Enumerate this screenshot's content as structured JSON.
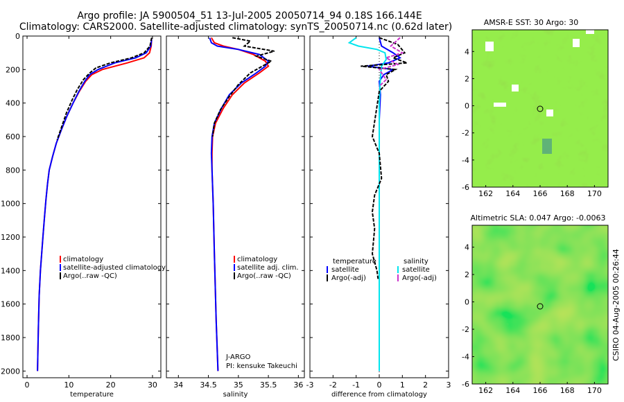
{
  "figure": {
    "title_line1": "Argo profile: JA 5900504_51 13-Jul-2005 20050714_94 0.18S 166.144E",
    "title_line2": "Climatology: CARS2000. Satellite-adjusted climatology: synTS_20050714.nc (0.62d later)",
    "side_label": "CSIRO 04-Aug-2005 00:26:44",
    "colors": {
      "climatology": "#ff0000",
      "satellite": "#0000ff",
      "argo": "#000000",
      "cyan": "#00e5ee",
      "magenta": "#cc33cc"
    }
  },
  "chart_data": [
    {
      "id": "temperature",
      "type": "line",
      "xlabel": "temperature",
      "ylabel": "",
      "xlim": [
        -1,
        32
      ],
      "ylim": [
        2040,
        0
      ],
      "xticks": [
        0,
        10,
        20,
        30
      ],
      "yticks": [
        0,
        200,
        400,
        600,
        800,
        1000,
        1200,
        1400,
        1600,
        1800,
        2000
      ],
      "legend": [
        "climatology",
        "satellite-adjusted climatology",
        "Argo(..raw -QC)"
      ],
      "series": [
        {
          "name": "climatology",
          "color": "#ff0000",
          "x": [
            29.8,
            29.7,
            29.3,
            28,
            24,
            18,
            15.5,
            14,
            12.5,
            11,
            9.5,
            8.2,
            7,
            6.1,
            5.3,
            4.9,
            4.5,
            4.1,
            3.8,
            3.5,
            3.2,
            2.9,
            2.7,
            2.5
          ],
          "y": [
            20,
            60,
            100,
            130,
            160,
            200,
            230,
            270,
            330,
            400,
            480,
            560,
            640,
            720,
            800,
            880,
            980,
            1100,
            1200,
            1300,
            1400,
            1550,
            1750,
            2000
          ]
        },
        {
          "name": "satellite-adjusted climatology",
          "color": "#0000ff",
          "x": [
            29.8,
            29.6,
            28.5,
            26,
            21,
            17,
            15,
            13.8,
            12.4,
            11,
            9.5,
            8.2,
            7,
            6.1,
            5.3,
            4.9,
            4.5,
            4.1,
            3.8,
            3.5,
            3.2,
            2.9,
            2.7,
            2.5
          ],
          "y": [
            20,
            60,
            100,
            130,
            160,
            200,
            230,
            270,
            330,
            400,
            480,
            560,
            640,
            720,
            800,
            880,
            980,
            1100,
            1200,
            1300,
            1400,
            1550,
            1750,
            2000
          ]
        },
        {
          "name": "Argo(..raw -QC)",
          "color": "#000000",
          "x": [
            29.8,
            29.4,
            28,
            25,
            20,
            16.5,
            15,
            13.5,
            12,
            10.8,
            9.4,
            8.3,
            7.2
          ],
          "y": [
            10,
            60,
            100,
            130,
            160,
            190,
            220,
            260,
            320,
            380,
            460,
            540,
            620
          ]
        }
      ]
    },
    {
      "id": "salinity",
      "type": "line",
      "xlabel": "salinity",
      "xlim": [
        33.8,
        36.1
      ],
      "ylim": [
        2040,
        0
      ],
      "xticks": [
        34,
        34.5,
        35,
        35.5,
        36
      ],
      "legend": [
        "climatology",
        "satellite adj. clim.",
        "Argo(..raw -QC)"
      ],
      "annotations": [
        "J-ARGO",
        "PI: kensuke Takeuchi"
      ],
      "series": [
        {
          "name": "climatology",
          "color": "#ff0000",
          "x": [
            34.55,
            34.6,
            34.75,
            35,
            35.25,
            35.45,
            35.5,
            35.35,
            35.1,
            34.9,
            34.75,
            34.62,
            34.57,
            34.56,
            34.56,
            34.58,
            34.6,
            34.63,
            34.66
          ],
          "y": [
            10,
            40,
            60,
            80,
            110,
            150,
            180,
            220,
            280,
            350,
            430,
            520,
            600,
            700,
            800,
            1000,
            1300,
            1700,
            2000
          ]
        },
        {
          "name": "satellite adj. clim.",
          "color": "#0000ff",
          "x": [
            34.52,
            34.55,
            34.65,
            35,
            35.35,
            35.5,
            35.45,
            35.3,
            35.05,
            34.85,
            34.72,
            34.6,
            34.56,
            34.55,
            34.56,
            34.58,
            34.6,
            34.63,
            34.66
          ],
          "y": [
            10,
            40,
            60,
            80,
            110,
            150,
            180,
            220,
            280,
            350,
            430,
            520,
            600,
            700,
            800,
            1000,
            1300,
            1700,
            2000
          ]
        },
        {
          "name": "Argo(..raw -QC)",
          "color": "#000000",
          "x": [
            34.9,
            35.2,
            35.1,
            35.6,
            35.3,
            35.55,
            35.4,
            35.2,
            35,
            34.85,
            34.7,
            34.6,
            34.57
          ],
          "y": [
            10,
            30,
            60,
            90,
            120,
            150,
            180,
            220,
            290,
            360,
            440,
            520,
            600
          ]
        }
      ]
    },
    {
      "id": "difference",
      "type": "line",
      "xlabel": "difference from climatology",
      "xlim": [
        -3,
        3
      ],
      "ylim": [
        2040,
        0
      ],
      "xticks": [
        -3,
        -2,
        -1,
        0,
        1,
        2,
        3
      ],
      "legend": [
        "temperature",
        "satellite",
        "Argo(-adj)",
        "salinity",
        "satellite",
        "Argo(-adj)"
      ],
      "series": [
        {
          "name": "temperature satellite",
          "color": "#0000ff",
          "x": [
            0,
            0.1,
            0.6,
            0.9,
            0.4,
            -0.5,
            0.6,
            0.2,
            0,
            0.05,
            0,
            0,
            0
          ],
          "y": [
            10,
            60,
            100,
            130,
            160,
            180,
            200,
            230,
            270,
            350,
            500,
            1000,
            2000
          ]
        },
        {
          "name": "salinity satellite",
          "color": "#00e5ee",
          "x": [
            -1,
            -1.3,
            -0.9,
            -0.1,
            0.25,
            0.3,
            0.1,
            0.05,
            0,
            0,
            0,
            0
          ],
          "y": [
            10,
            40,
            60,
            80,
            100,
            140,
            180,
            250,
            400,
            800,
            1400,
            2000
          ]
        },
        {
          "name": "temperature Argo(-adj)",
          "color": "#000000",
          "x": [
            0,
            0.8,
            1.1,
            0.6,
            1.2,
            -0.8,
            0.7,
            0.3,
            0.4,
            0,
            -0.1,
            -0.3,
            0,
            0.1,
            -0.2,
            -0.3,
            -0.2,
            -0.3,
            -0.1,
            -0.05
          ],
          "y": [
            10,
            50,
            100,
            130,
            160,
            180,
            200,
            230,
            270,
            330,
            420,
            600,
            700,
            850,
            950,
            1050,
            1150,
            1300,
            1400,
            1450
          ]
        },
        {
          "name": "salinity Argo(-adj)",
          "color": "#cc33cc",
          "x": [
            0.9,
            0.5,
            1,
            0.3,
            0.8,
            0,
            0.3,
            0
          ],
          "y": [
            10,
            60,
            100,
            130,
            170,
            200,
            260,
            300
          ]
        }
      ]
    },
    {
      "id": "sst_map",
      "type": "heatmap",
      "title": "AMSR-E SST: 30 Argo: 30",
      "xlim": [
        161,
        171
      ],
      "ylim": [
        -6,
        5.6
      ],
      "xticks": [
        162,
        164,
        166,
        168,
        170
      ],
      "yticks": [
        -6,
        -4,
        -2,
        0,
        2,
        4
      ],
      "marker": {
        "lon": 166.144,
        "lat": -0.18
      }
    },
    {
      "id": "sla_map",
      "type": "heatmap",
      "title": "Altimetric SLA: 0.047 Argo: -0.0063",
      "xlim": [
        161,
        171
      ],
      "ylim": [
        -6,
        5.6
      ],
      "xticks": [
        162,
        164,
        166,
        168,
        170
      ],
      "yticks": [
        -6,
        -4,
        -2,
        0,
        2,
        4
      ],
      "marker": {
        "lon": 166.144,
        "lat": -0.18
      }
    }
  ]
}
